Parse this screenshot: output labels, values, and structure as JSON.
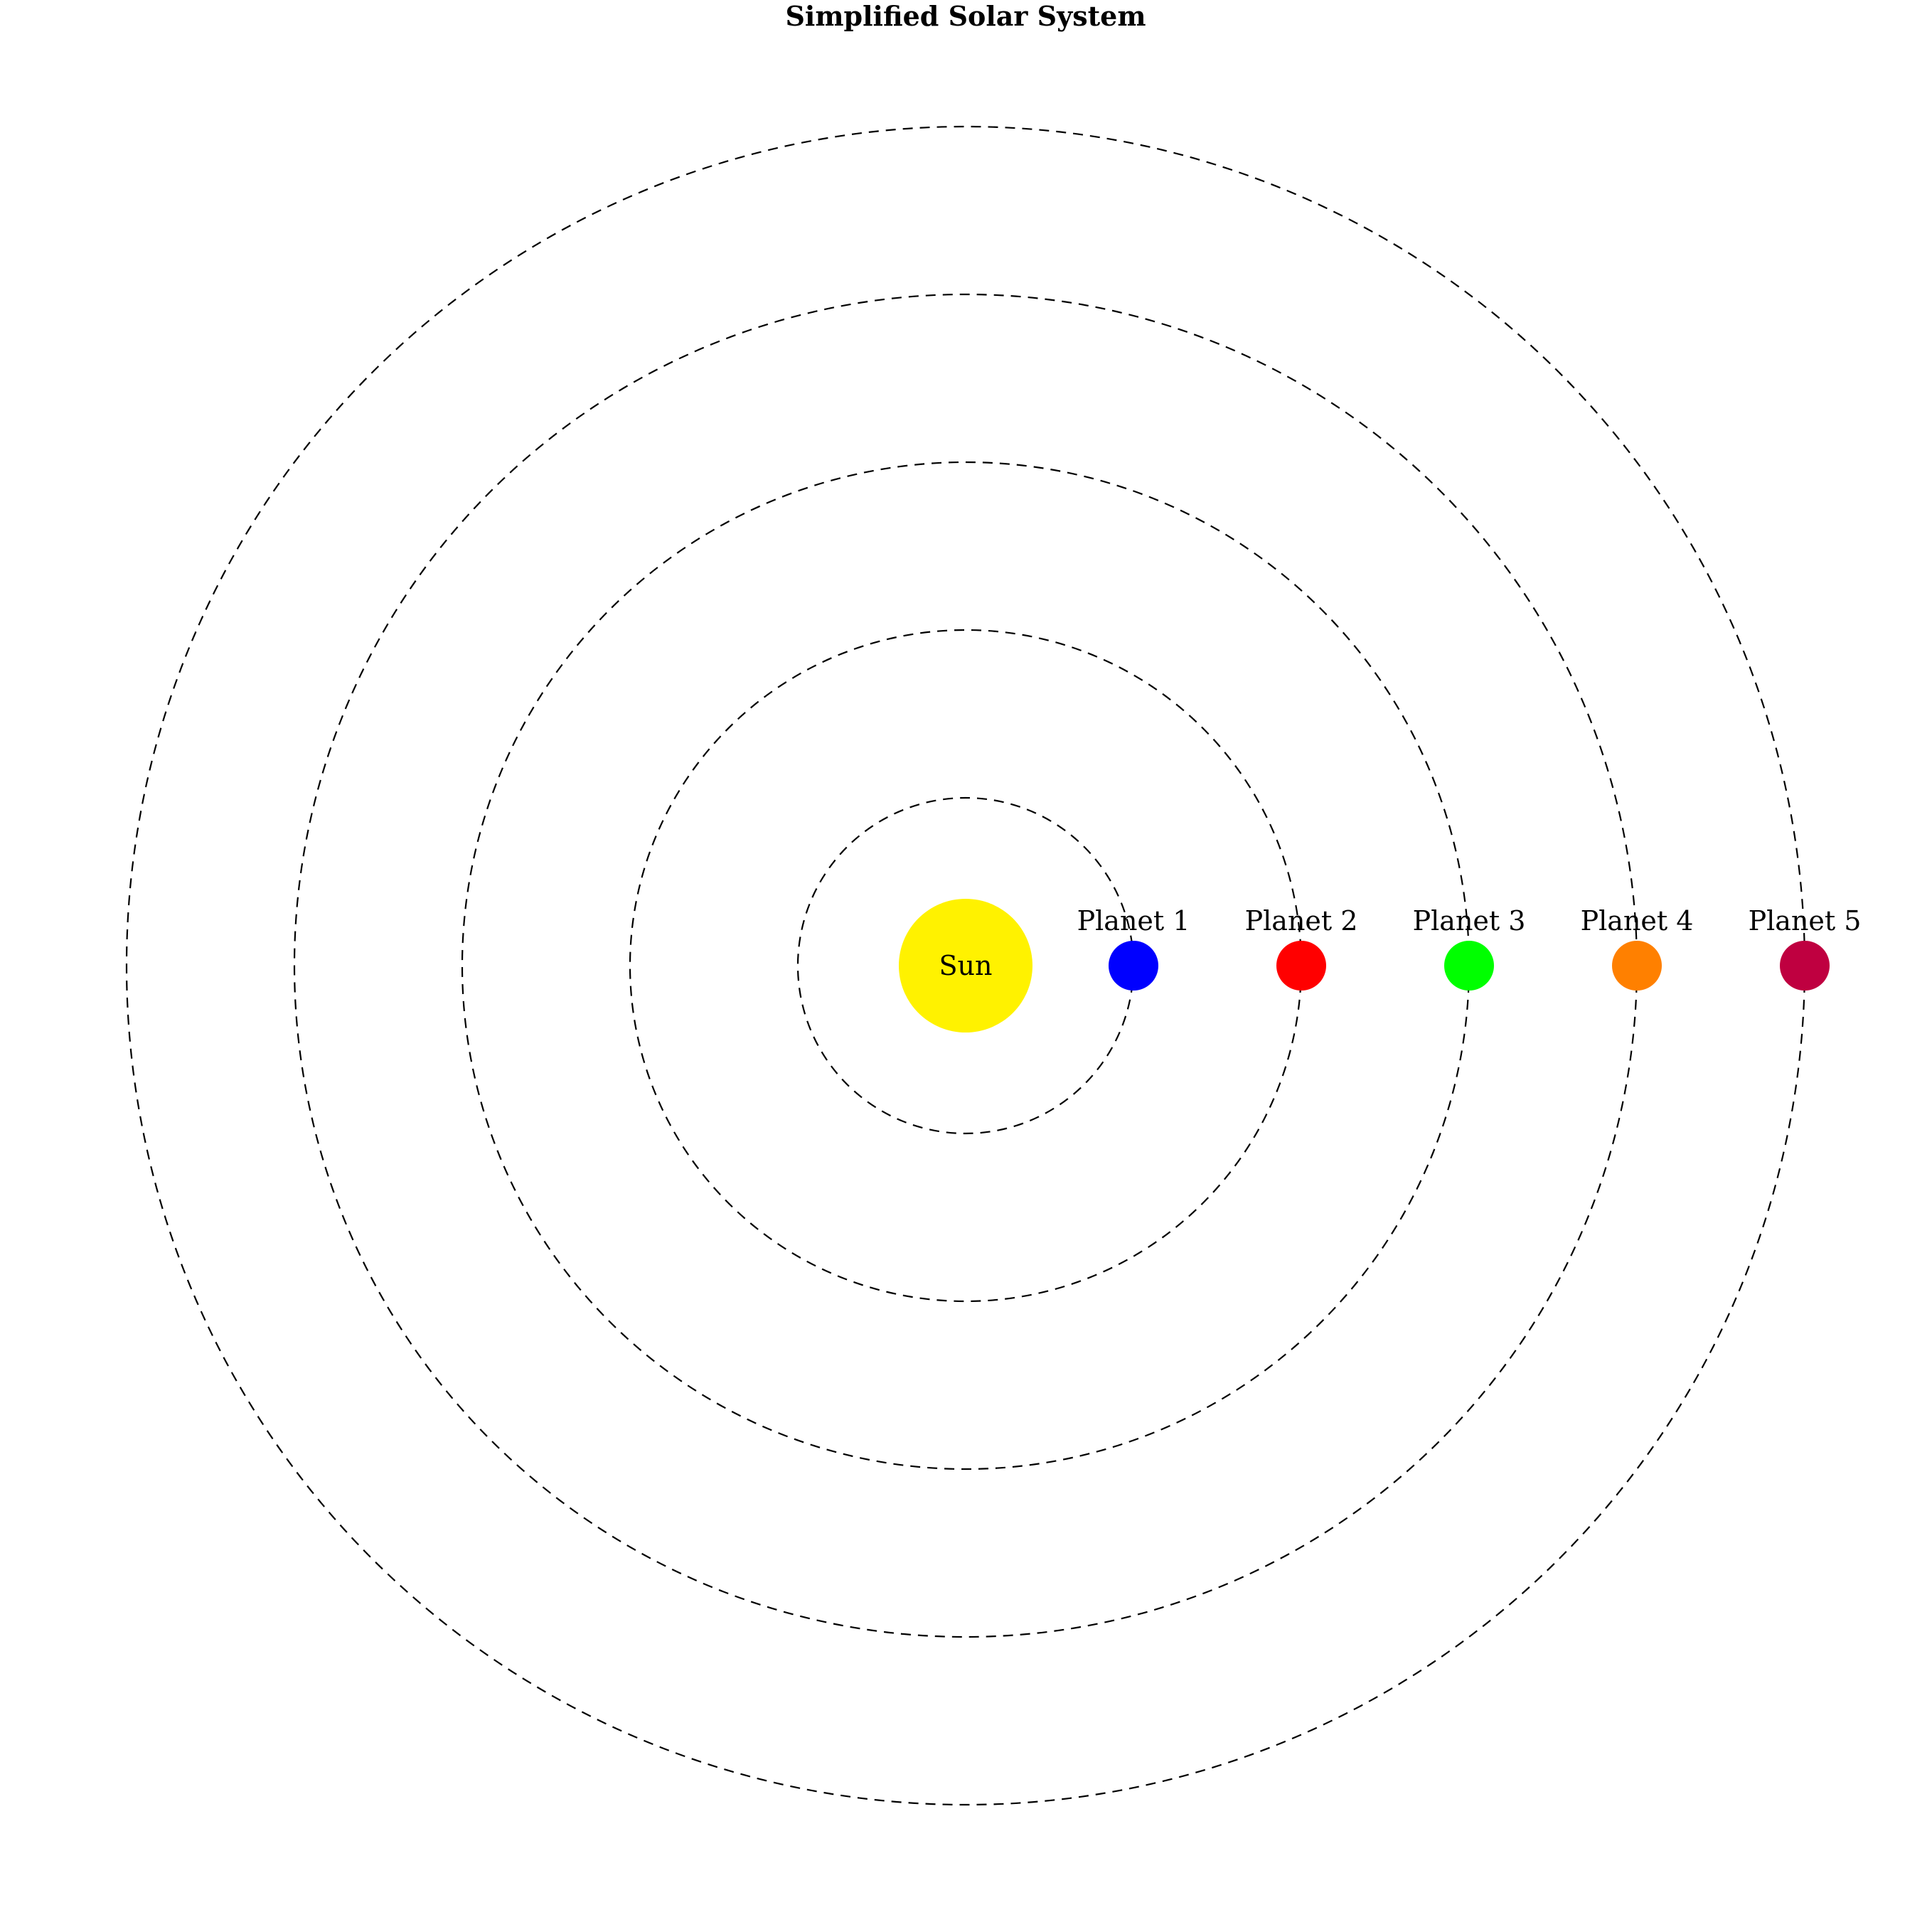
{
  "title": "Simplified Solar System",
  "sun": {
    "label": "Sun",
    "color": "#FFF200"
  },
  "planets": [
    {
      "label": "Planet 1",
      "color": "#0000FF"
    },
    {
      "label": "Planet 2",
      "color": "#FF0000"
    },
    {
      "label": "Planet 3",
      "color": "#00FF00"
    },
    {
      "label": "Planet 4",
      "color": "#FF8000"
    },
    {
      "label": "Planet 5",
      "color": "#BF0040"
    }
  ],
  "orbit_style": "dashed"
}
